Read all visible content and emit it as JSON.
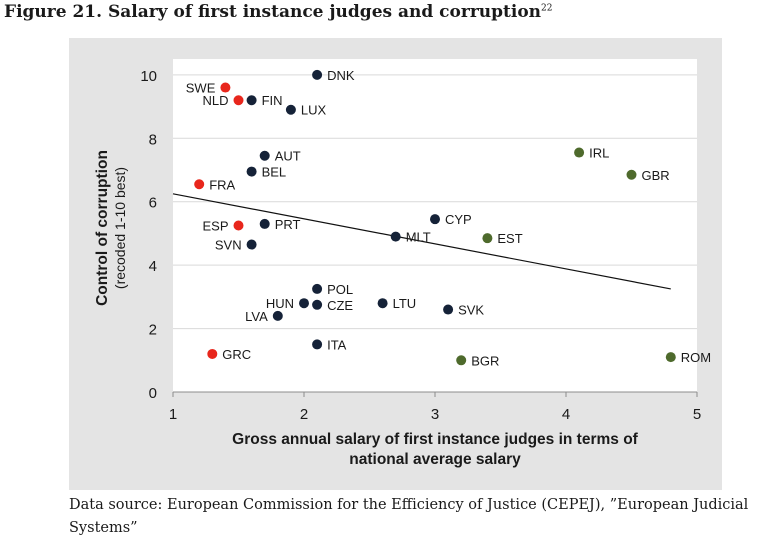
{
  "figure": {
    "title_prefix": "Figure 21",
    "title_rest": ". Salary of first instance judges and corruption",
    "footnote": "22"
  },
  "source_note": "Data source: European Commission for the Efficiency of Justice (CEPEJ), ”European Judicial Systems”",
  "colors": {
    "panel_background": "#e4e4e4",
    "plot_background": "#ffffff",
    "dark_navy": "#152238",
    "red": "#e8261c",
    "olive_green": "#4e6a2c"
  },
  "chart_data": {
    "type": "scatter",
    "title": "",
    "xlabel_lines": [
      "Gross annual salary of first instance judges in terms of",
      "national average salary"
    ],
    "ylabel": "Control of corruption",
    "ylabel_sub": "(recoded 1-10 best)",
    "xlim": [
      1,
      5
    ],
    "ylim": [
      0,
      10.5
    ],
    "xticks": [
      1,
      2,
      3,
      4,
      5
    ],
    "yticks": [
      0,
      2,
      4,
      6,
      8,
      10
    ],
    "grid": "horizontal",
    "legend": "none",
    "trendline": {
      "x": [
        1,
        4.8
      ],
      "y": [
        6.25,
        3.25
      ]
    },
    "points": [
      {
        "label": "DNK",
        "x": 2.1,
        "y": 10.0,
        "group": "dark_navy",
        "side": "right"
      },
      {
        "label": "SWE",
        "x": 1.4,
        "y": 9.6,
        "group": "red",
        "side": "left"
      },
      {
        "label": "NLD",
        "x": 1.5,
        "y": 9.2,
        "group": "red",
        "side": "left"
      },
      {
        "label": "FIN",
        "x": 1.6,
        "y": 9.2,
        "group": "dark_navy",
        "side": "right"
      },
      {
        "label": "LUX",
        "x": 1.9,
        "y": 8.9,
        "group": "dark_navy",
        "side": "right"
      },
      {
        "label": "AUT",
        "x": 1.7,
        "y": 7.45,
        "group": "dark_navy",
        "side": "right"
      },
      {
        "label": "BEL",
        "x": 1.6,
        "y": 6.95,
        "group": "dark_navy",
        "side": "right"
      },
      {
        "label": "FRA",
        "x": 1.2,
        "y": 6.55,
        "group": "red",
        "side": "right"
      },
      {
        "label": "CYP",
        "x": 3.0,
        "y": 5.45,
        "group": "dark_navy",
        "side": "right"
      },
      {
        "label": "ESP",
        "x": 1.5,
        "y": 5.25,
        "group": "red",
        "side": "left"
      },
      {
        "label": "PRT",
        "x": 1.7,
        "y": 5.3,
        "group": "dark_navy",
        "side": "right"
      },
      {
        "label": "MLT",
        "x": 2.7,
        "y": 4.9,
        "group": "dark_navy",
        "side": "right"
      },
      {
        "label": "SVN",
        "x": 1.6,
        "y": 4.65,
        "group": "dark_navy",
        "side": "left"
      },
      {
        "label": "POL",
        "x": 2.1,
        "y": 3.25,
        "group": "dark_navy",
        "side": "right"
      },
      {
        "label": "HUN",
        "x": 2.0,
        "y": 2.8,
        "group": "dark_navy",
        "side": "left"
      },
      {
        "label": "CZE",
        "x": 2.1,
        "y": 2.75,
        "group": "dark_navy",
        "side": "right"
      },
      {
        "label": "LTU",
        "x": 2.6,
        "y": 2.8,
        "group": "dark_navy",
        "side": "right"
      },
      {
        "label": "LVA",
        "x": 1.8,
        "y": 2.4,
        "group": "dark_navy",
        "side": "left"
      },
      {
        "label": "ITA",
        "x": 2.1,
        "y": 1.5,
        "group": "dark_navy",
        "side": "right"
      },
      {
        "label": "GRC",
        "x": 1.3,
        "y": 1.2,
        "group": "red",
        "side": "right"
      },
      {
        "label": "IRL",
        "x": 4.1,
        "y": 7.55,
        "group": "olive_green",
        "side": "right"
      },
      {
        "label": "GBR",
        "x": 4.5,
        "y": 6.85,
        "group": "olive_green",
        "side": "right"
      },
      {
        "label": "EST",
        "x": 3.4,
        "y": 4.85,
        "group": "olive_green",
        "side": "right"
      },
      {
        "label": "SVK",
        "x": 3.1,
        "y": 2.6,
        "group": "dark_navy",
        "side": "right"
      },
      {
        "label": "BGR",
        "x": 3.2,
        "y": 1.0,
        "group": "olive_green",
        "side": "right"
      },
      {
        "label": "ROM",
        "x": 4.8,
        "y": 1.1,
        "group": "olive_green",
        "side": "right"
      }
    ]
  }
}
